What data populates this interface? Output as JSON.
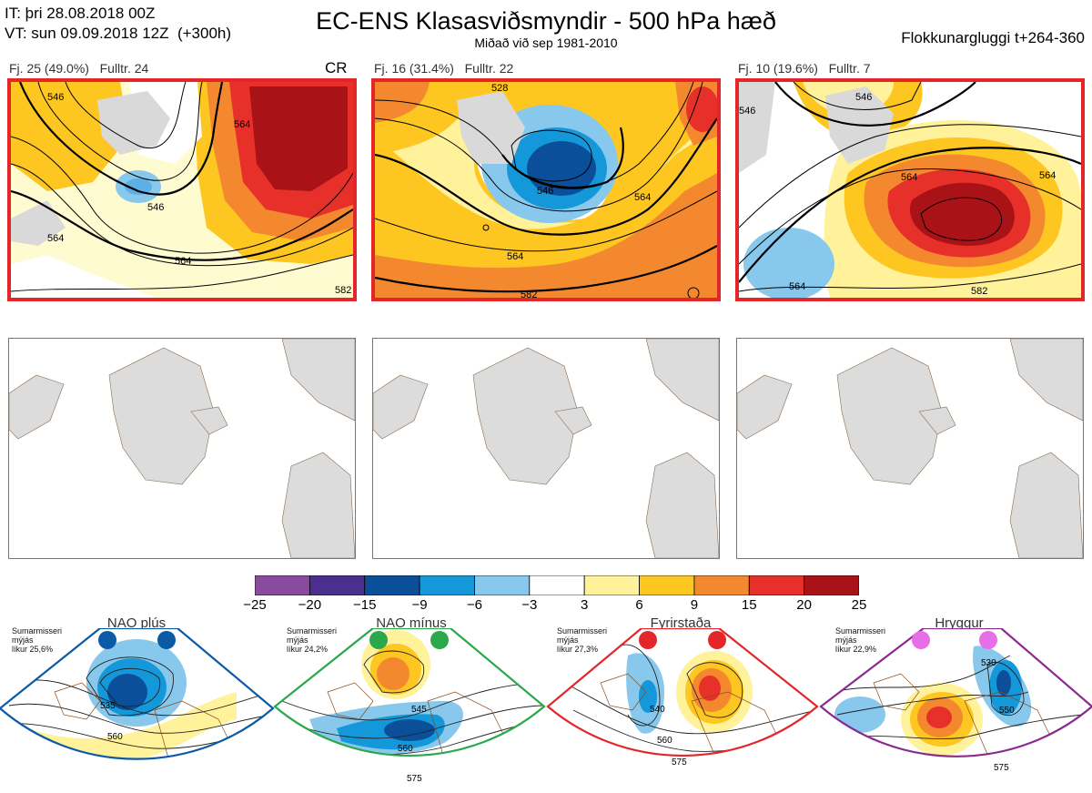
{
  "header": {
    "it_line": "IT: þri 28.08.2018 00Z",
    "vt_line": "VT: sun 09.09.2018 12Z  (+300h)",
    "title": "EC-ENS Klasasviðsmyndir - 500 hPa hæð",
    "subtitle": "Miðað við sep 1981-2010",
    "window": "Flokkunargluggi t+264-360"
  },
  "clusters": [
    {
      "label": "Fj. 25 (49.0%)",
      "members": "Fulltr. 24",
      "flag": "CR",
      "contours": [
        "546",
        "564",
        "564",
        "546",
        "564",
        "582"
      ]
    },
    {
      "label": "Fj. 16 (31.4%)",
      "members": "Fulltr. 22",
      "flag": "",
      "contours": [
        "528",
        "546",
        "564",
        "564",
        "582"
      ]
    },
    {
      "label": "Fj. 10 (19.6%)",
      "members": "Fulltr. 7",
      "flag": "",
      "contours": [
        "546",
        "564",
        "564",
        "546",
        "564",
        "582"
      ]
    }
  ],
  "colorbar": {
    "ticks": [
      "−25",
      "−20",
      "−15",
      "−9",
      "−6",
      "−3",
      "3",
      "6",
      "9",
      "15",
      "20",
      "25"
    ],
    "colors": [
      "#8a4a9d",
      "#4a2f8f",
      "#0b4f9a",
      "#1598d9",
      "#88c8ec",
      "#ffffff",
      "#fff29a",
      "#fdc620",
      "#f4882f",
      "#e8302a",
      "#a91216"
    ]
  },
  "regimes": [
    {
      "name": "NAO plús",
      "season": [
        "Sumarmisseri",
        "mýjás",
        "líkur 25,6%"
      ],
      "color": "#0b5aa6",
      "contours": [
        "535",
        "560"
      ]
    },
    {
      "name": "NAO mínus",
      "season": [
        "Sumarmisseri",
        "mýjás",
        "líkur 24,2%"
      ],
      "color": "#2aa84a",
      "contours": [
        "545",
        "560",
        "575"
      ]
    },
    {
      "name": "Fyrirstaða",
      "season": [
        "Sumarmisseri",
        "mýjás",
        "líkur 27,3%"
      ],
      "color": "#e3262a",
      "contours": [
        "540",
        "560",
        "575"
      ]
    },
    {
      "name": "Hryggur",
      "season": [
        "Sumarmisseri",
        "mýjás",
        "líkur 22,9%"
      ],
      "color": "#8b2a91",
      "contours": [
        "530",
        "550",
        "575"
      ]
    }
  ]
}
